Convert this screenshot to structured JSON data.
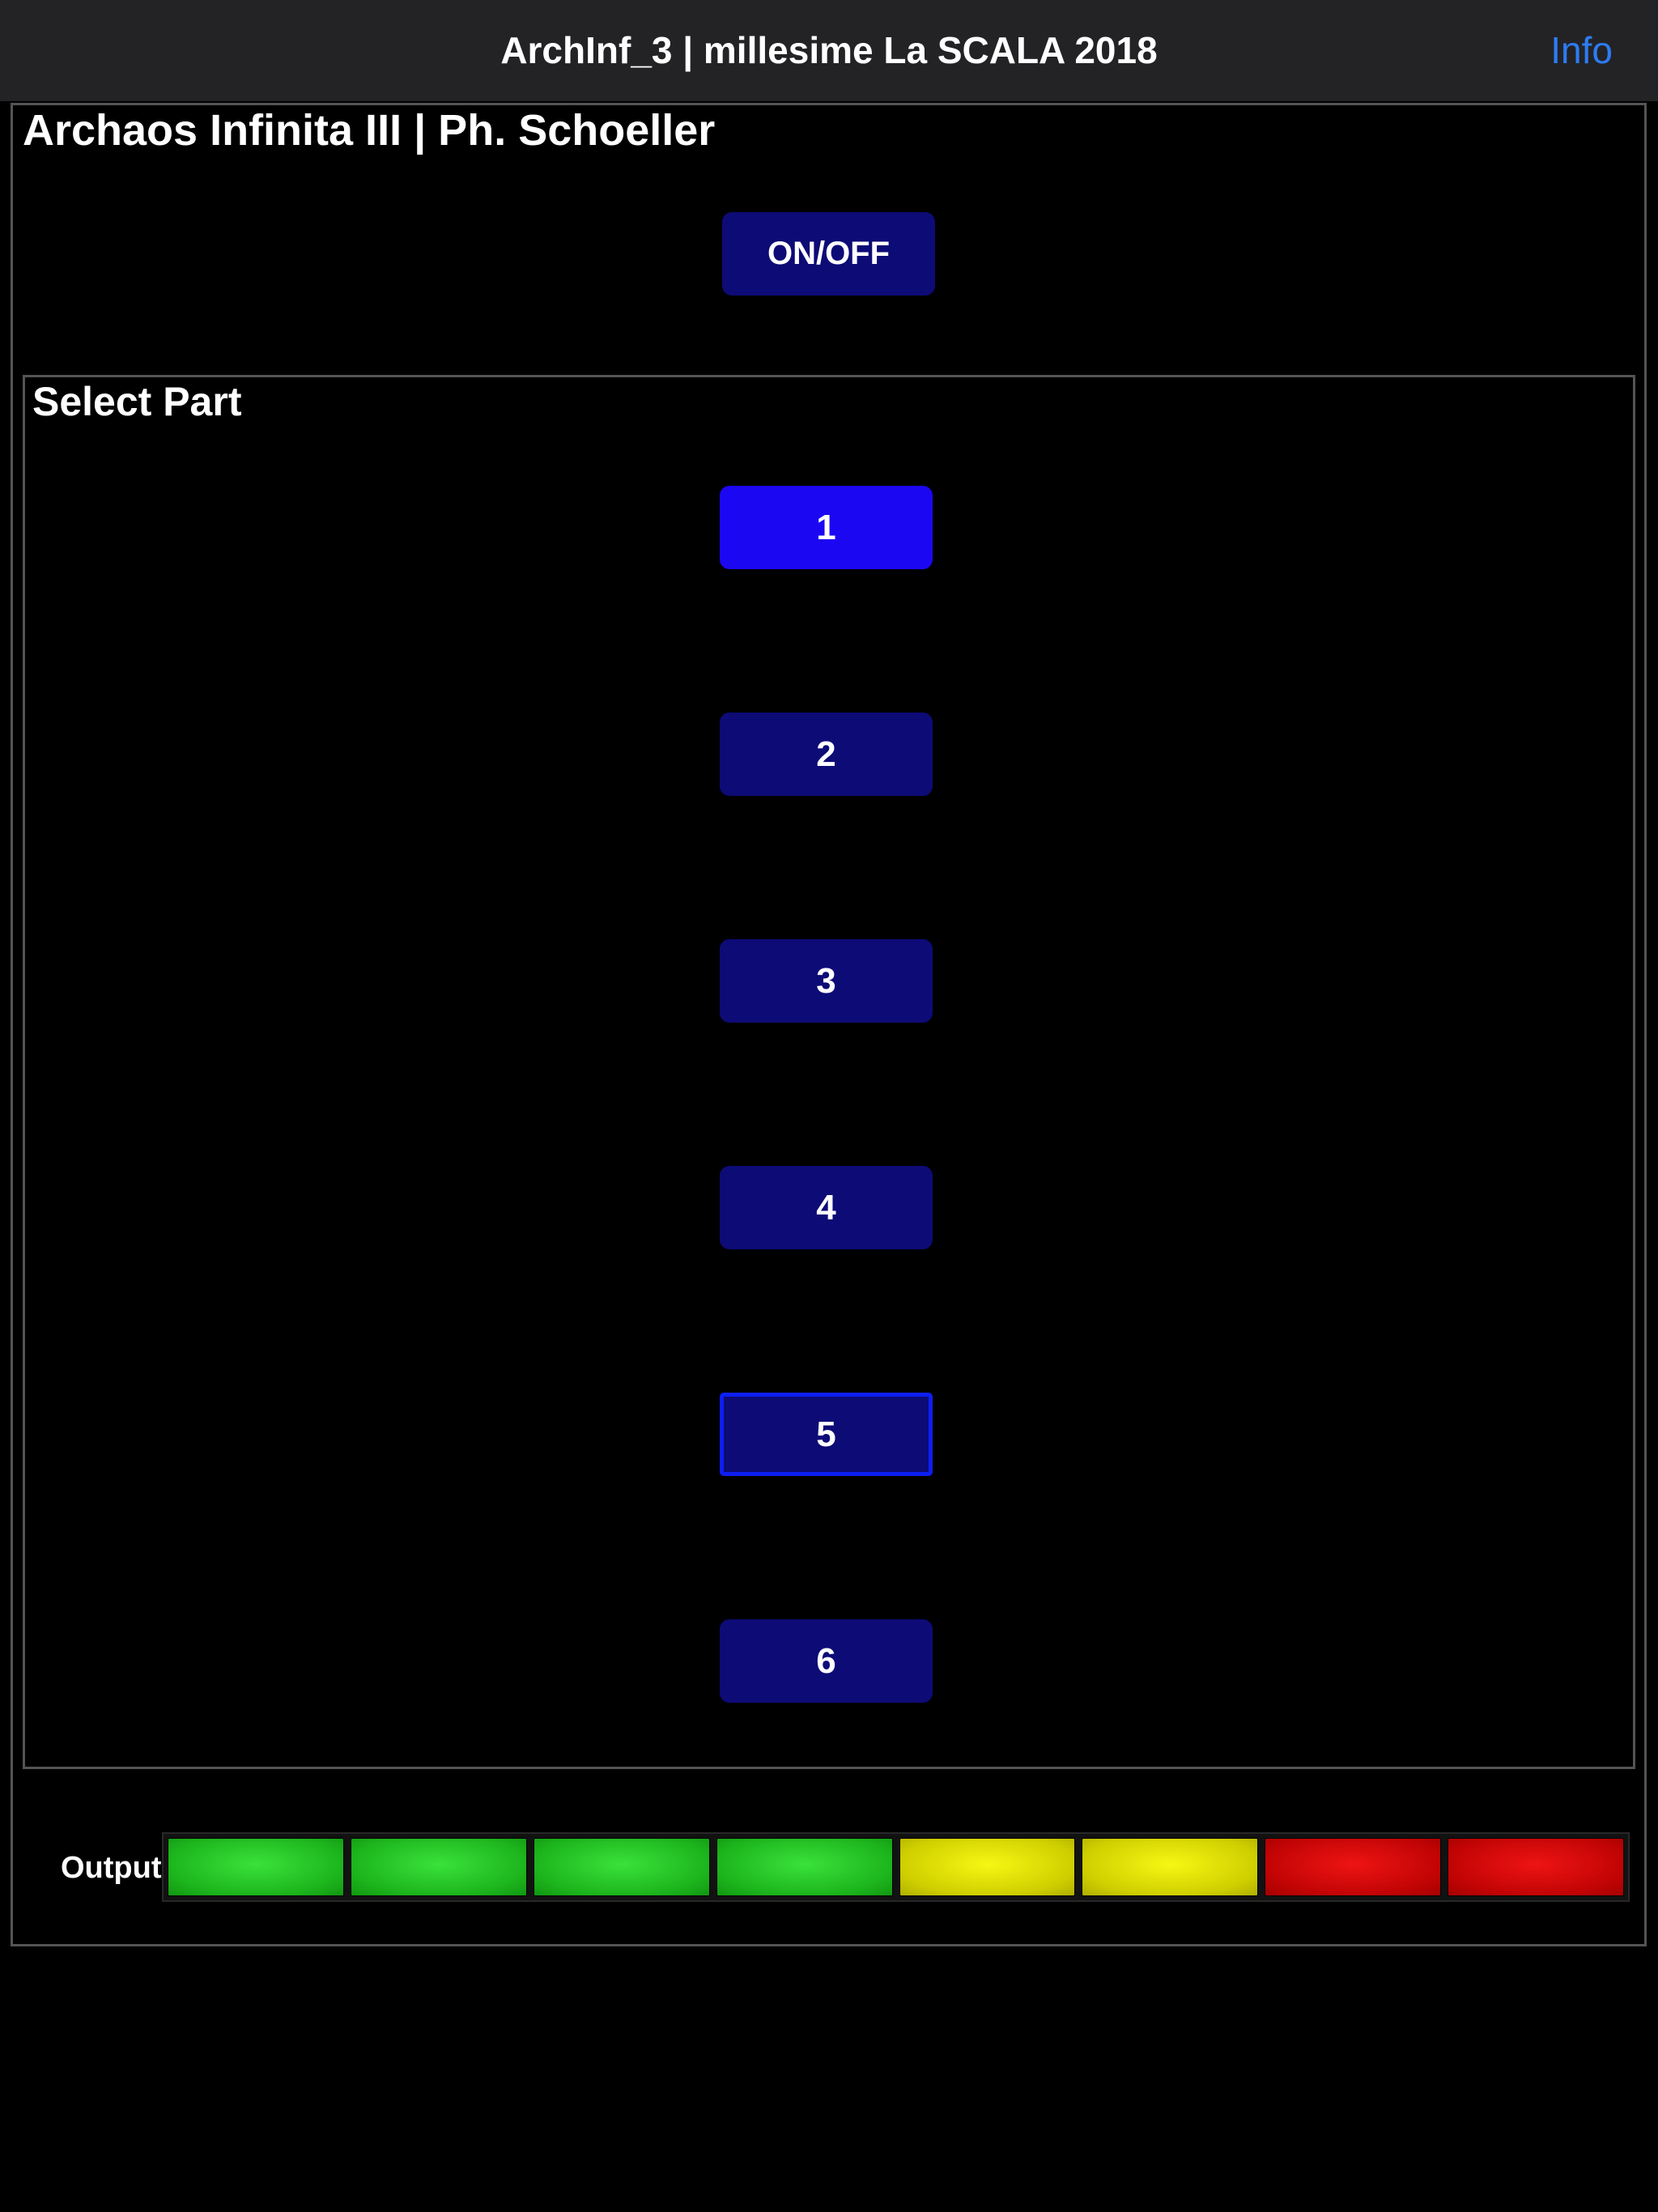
{
  "title_bar": {
    "title": "ArchInf_3 | millesime La SCALA 2018",
    "info_label": "Info"
  },
  "panel": {
    "heading": "Archaos Infinita III | Ph. Schoeller",
    "onoff_label": "ON/OFF"
  },
  "select_part": {
    "label": "Select Part",
    "buttons": [
      {
        "label": "1",
        "state": "active"
      },
      {
        "label": "2",
        "state": "normal"
      },
      {
        "label": "3",
        "state": "normal"
      },
      {
        "label": "4",
        "state": "normal"
      },
      {
        "label": "5",
        "state": "outlined"
      },
      {
        "label": "6",
        "state": "normal"
      }
    ]
  },
  "output": {
    "label": "Output",
    "segments": [
      "green",
      "green",
      "green",
      "green",
      "yellow",
      "yellow",
      "red",
      "red"
    ]
  },
  "colors": {
    "titlebar_bg": "#232326",
    "panel_border": "#545454",
    "button_navy": "#0d0b76",
    "button_active_blue": "#1c07f2",
    "button_outline_blue": "#0d1ef2",
    "info_link_blue": "#2d7cf2",
    "meter_green": "#1db51d",
    "meter_yellow": "#cfcf00",
    "meter_red": "#c20404"
  }
}
